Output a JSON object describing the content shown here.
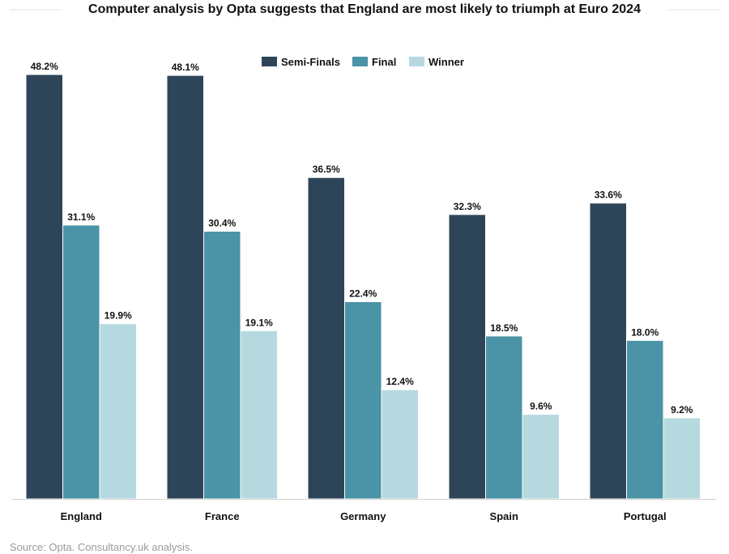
{
  "chart_data": {
    "type": "bar",
    "title": "Computer analysis by Opta suggests that England are most likely to triumph at Euro 2024",
    "xlabel": "",
    "ylabel": "",
    "ylim": [
      0,
      50
    ],
    "grid": false,
    "legend_position": "top-center",
    "categories": [
      "England",
      "France",
      "Germany",
      "Spain",
      "Portugal"
    ],
    "series": [
      {
        "name": "Semi-Finals",
        "color": "#2e4559",
        "values": [
          48.2,
          48.1,
          36.5,
          32.3,
          33.6
        ]
      },
      {
        "name": "Final",
        "color": "#4b93a6",
        "values": [
          31.1,
          30.4,
          22.4,
          18.5,
          18.0
        ]
      },
      {
        "name": "Winner",
        "color": "#b5d9df",
        "values": [
          19.9,
          19.1,
          12.4,
          9.6,
          9.2
        ]
      }
    ]
  },
  "source": "Source: Opta. Consultancy.uk analysis."
}
